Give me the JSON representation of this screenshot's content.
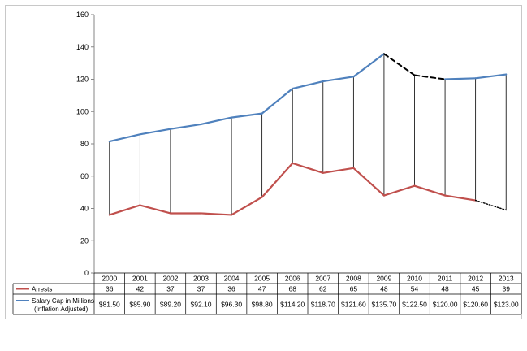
{
  "chart_data": {
    "type": "line",
    "categories": [
      "2000",
      "2001",
      "2002",
      "2003",
      "2004",
      "2005",
      "2006",
      "2007",
      "2008",
      "2009",
      "2010",
      "2011",
      "2012",
      "2013"
    ],
    "ylim": [
      0,
      160
    ],
    "yticks": [
      0,
      20,
      40,
      60,
      80,
      100,
      120,
      140,
      160
    ],
    "grid": false,
    "legend": "data-table-left",
    "series": [
      {
        "name": "Arrests",
        "color": "#c0504d",
        "values": [
          36,
          42,
          37,
          37,
          36,
          47,
          68,
          62,
          65,
          48,
          54,
          48,
          45,
          39
        ],
        "table_values": [
          "36",
          "42",
          "37",
          "37",
          "36",
          "47",
          "68",
          "62",
          "65",
          "48",
          "54",
          "48",
          "45",
          "39"
        ],
        "dotted_last_segment": true
      },
      {
        "name_line1": "Salary Cap in Millions",
        "name_line2": "(Inflation Adjusted)",
        "color": "#4f81bd",
        "values": [
          81.5,
          85.9,
          89.2,
          92.1,
          96.3,
          98.8,
          114.2,
          118.7,
          121.6,
          135.7,
          122.5,
          120.0,
          120.6,
          123.0
        ],
        "table_values": [
          "$81.50",
          "$85.90",
          "$89.20",
          "$92.10",
          "$96.30",
          "$98.80",
          "$114.20",
          "$118.70",
          "$121.60",
          "$135.70",
          "$122.50",
          "$120.00",
          "$120.60",
          "$123.00"
        ],
        "dashed_segments": [
          "2009-2010",
          "2010-2011"
        ]
      }
    ],
    "drop_lines": true,
    "colors": {
      "axis": "#868686",
      "drop_line": "#000000",
      "dashed": "#000000"
    }
  }
}
